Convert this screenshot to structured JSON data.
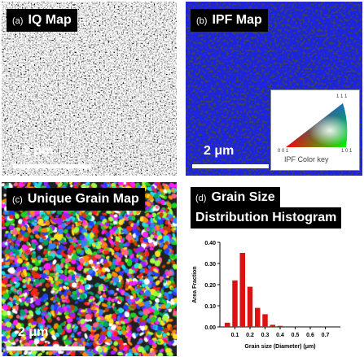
{
  "panel_a": {
    "tag": "(a)",
    "title": "IQ Map",
    "scale": "2 μm"
  },
  "panel_b": {
    "tag": "(b)",
    "title": "IPF Map",
    "scale": "2 μm",
    "key": {
      "title": "IPF Color key",
      "corner_111": "1 1 1",
      "corner_001": "0 0 1",
      "corner_101": "1 0 1"
    }
  },
  "panel_c": {
    "tag": "(c)",
    "title": "Unique Grain Map",
    "scale": "2 μm"
  },
  "panel_d": {
    "tag": "(d)",
    "title_line1": "Grain Size",
    "title_line2": "Distribution Histogram"
  },
  "chart_data": {
    "type": "bar",
    "xlabel": "Grain size (Diameter) (μm)",
    "ylabel": "Area  Fraction",
    "xlim": [
      0,
      0.8
    ],
    "ylim": [
      0,
      0.4
    ],
    "xticks": [
      "0.1",
      "0.2",
      "0.3",
      "0.4",
      "0.5",
      "0.6",
      "0.7"
    ],
    "yticks": [
      "0.00",
      "0.10",
      "0.20",
      "0.30",
      "0.40"
    ],
    "bar_color": "#dd1111",
    "x": [
      0.05,
      0.1,
      0.15,
      0.2,
      0.25,
      0.3,
      0.35,
      0.4
    ],
    "values": [
      0.02,
      0.22,
      0.35,
      0.19,
      0.09,
      0.06,
      0.01,
      0.005
    ]
  }
}
